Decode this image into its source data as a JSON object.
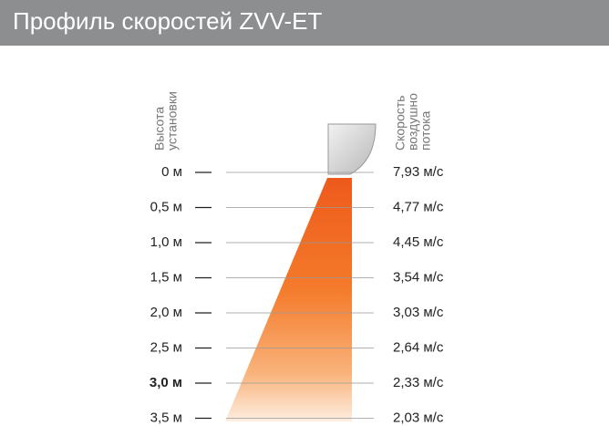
{
  "title": "Профиль скоростей ZVV-ET",
  "left_label": [
    "Высота",
    "установки"
  ],
  "right_label": [
    "Скорость",
    "воздушно",
    "потока"
  ],
  "rows": [
    {
      "height": "0 м",
      "speed": "7,93 м/с"
    },
    {
      "height": "0,5 м",
      "speed": "4,77 м/с"
    },
    {
      "height": "1,0 м",
      "speed": "4,45 м/с"
    },
    {
      "height": "1,5 м",
      "speed": "3,54 м/с"
    },
    {
      "height": "2,0 м",
      "speed": "3,03 м/с"
    },
    {
      "height": "2,5 м",
      "speed": "2,64 м/с"
    },
    {
      "height": "3,0 м",
      "speed": "2,33 м/с"
    },
    {
      "height": "3,5 м",
      "speed": "2,03 м/с"
    }
  ]
}
